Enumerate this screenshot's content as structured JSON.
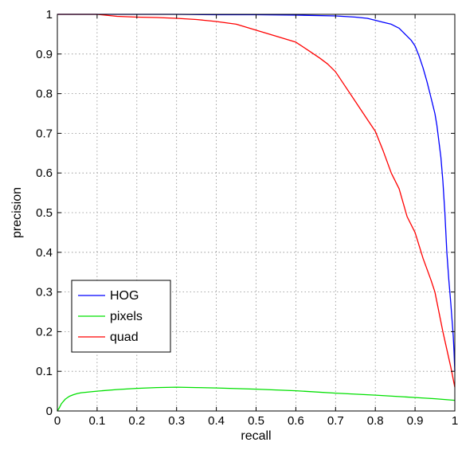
{
  "chart_data": {
    "type": "line",
    "title": "",
    "xlabel": "recall",
    "ylabel": "precision",
    "xlim": [
      0,
      1
    ],
    "ylim": [
      0,
      1
    ],
    "xticks": [
      "0",
      "0.1",
      "0.2",
      "0.3",
      "0.4",
      "0.5",
      "0.6",
      "0.7",
      "0.8",
      "0.9",
      "1"
    ],
    "yticks": [
      "0",
      "0.1",
      "0.2",
      "0.3",
      "0.4",
      "0.5",
      "0.6",
      "0.7",
      "0.8",
      "0.9",
      "1"
    ],
    "grid": true,
    "legend_position": "bottom-left",
    "series": [
      {
        "name": "HOG",
        "color": "#0000ff",
        "x": [
          0,
          0.1,
          0.2,
          0.3,
          0.4,
          0.5,
          0.6,
          0.7,
          0.75,
          0.78,
          0.8,
          0.82,
          0.84,
          0.85,
          0.86,
          0.87,
          0.88,
          0.89,
          0.9,
          0.91,
          0.92,
          0.93,
          0.94,
          0.95,
          0.955,
          0.96,
          0.965,
          0.97,
          0.975,
          0.98,
          0.985,
          0.99,
          0.993,
          0.996,
          0.998,
          1.0
        ],
        "y": [
          1.0,
          1.0,
          1.0,
          1.0,
          0.999,
          0.999,
          0.998,
          0.996,
          0.993,
          0.99,
          0.985,
          0.98,
          0.975,
          0.97,
          0.965,
          0.955,
          0.945,
          0.935,
          0.92,
          0.895,
          0.865,
          0.83,
          0.79,
          0.75,
          0.72,
          0.68,
          0.64,
          0.58,
          0.5,
          0.4,
          0.33,
          0.27,
          0.23,
          0.19,
          0.15,
          0.1
        ]
      },
      {
        "name": "pixels",
        "color": "#00e000",
        "x": [
          0,
          0.005,
          0.01,
          0.02,
          0.03,
          0.04,
          0.05,
          0.06,
          0.08,
          0.1,
          0.15,
          0.2,
          0.25,
          0.3,
          0.35,
          0.4,
          0.5,
          0.6,
          0.7,
          0.8,
          0.9,
          0.95,
          1.0
        ],
        "y": [
          0,
          0.008,
          0.018,
          0.03,
          0.037,
          0.041,
          0.044,
          0.046,
          0.048,
          0.05,
          0.054,
          0.057,
          0.059,
          0.06,
          0.059,
          0.058,
          0.055,
          0.051,
          0.045,
          0.04,
          0.034,
          0.031,
          0.027
        ]
      },
      {
        "name": "quad",
        "color": "#ff0000",
        "x": [
          0,
          0.05,
          0.1,
          0.15,
          0.2,
          0.25,
          0.3,
          0.35,
          0.4,
          0.45,
          0.5,
          0.55,
          0.6,
          0.63,
          0.66,
          0.68,
          0.7,
          0.72,
          0.74,
          0.76,
          0.78,
          0.8,
          0.82,
          0.84,
          0.86,
          0.88,
          0.9,
          0.92,
          0.94,
          0.95,
          0.96,
          0.97,
          0.98,
          0.99,
          1.0
        ],
        "y": [
          1.0,
          1.0,
          1.0,
          0.995,
          0.993,
          0.992,
          0.99,
          0.987,
          0.982,
          0.975,
          0.96,
          0.945,
          0.93,
          0.91,
          0.89,
          0.875,
          0.855,
          0.825,
          0.795,
          0.765,
          0.735,
          0.705,
          0.655,
          0.6,
          0.56,
          0.49,
          0.45,
          0.385,
          0.33,
          0.3,
          0.25,
          0.2,
          0.155,
          0.11,
          0.06
        ]
      }
    ]
  }
}
